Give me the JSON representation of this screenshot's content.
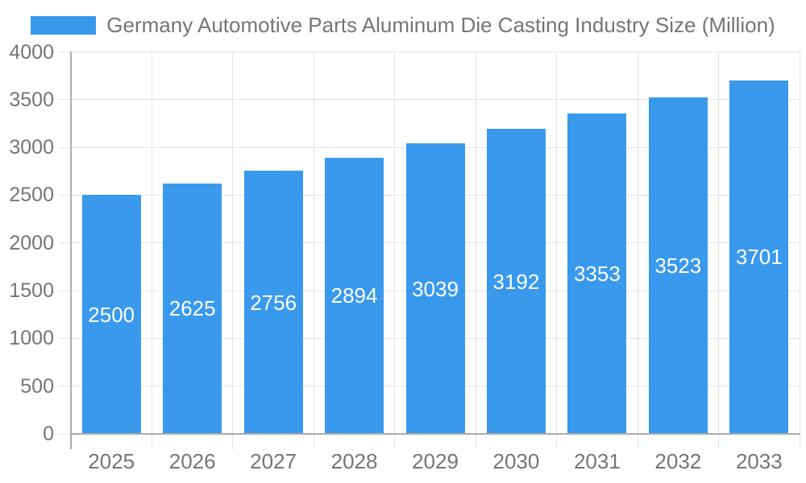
{
  "chart_data": {
    "type": "bar",
    "title": "Germany Automotive Parts Aluminum Die Casting Industry Size (Million)",
    "categories": [
      "2025",
      "2026",
      "2027",
      "2028",
      "2029",
      "2030",
      "2031",
      "2032",
      "2033"
    ],
    "values": [
      2500,
      2625,
      2756,
      2894,
      3039,
      3192,
      3353,
      3523,
      3701
    ],
    "xlabel": "",
    "ylabel": "",
    "ylim": [
      0,
      4000
    ],
    "yticks": [
      0,
      500,
      1000,
      1500,
      2000,
      2500,
      3000,
      3500,
      4000
    ],
    "grid": true,
    "legend_position": "top",
    "value_labels": "inside-center",
    "colors": {
      "bar": "#3999ED",
      "value_label": "#FFFFFF",
      "axis_text": "#757575",
      "gridline": "#E4E4E4",
      "axis_line": "#ABABAB",
      "background": "#FFFFFF"
    }
  }
}
